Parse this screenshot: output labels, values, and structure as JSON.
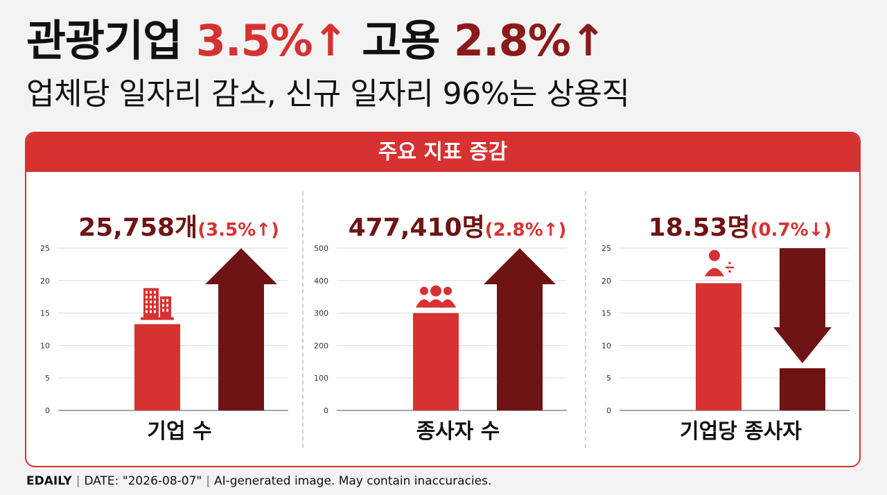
{
  "headline": {
    "part1": "관광기업 ",
    "value1": "3.5%↑",
    "part2": " 고용 ",
    "value2": "2.8%↑"
  },
  "subheadline": "업체당 일자리 감소, 신규 일자리 96%는 상용직",
  "panel_title": "주요 지표 증감",
  "colors": {
    "red": "#d63232",
    "dark_red": "#6e1414",
    "grid": "#d9d9d9"
  },
  "chart_data": [
    {
      "type": "bar",
      "value_label": "25,758개",
      "change_label": "(3.5%↑)",
      "xlabel": "기업 수",
      "ylim": [
        0,
        25
      ],
      "yticks": [
        0,
        5,
        10,
        15,
        20,
        25
      ],
      "bar_value": 13.3,
      "arrow": "up",
      "arrow_top_value": 25,
      "icon": "building-icon"
    },
    {
      "type": "bar",
      "value_label": "477,410명",
      "change_label": "(2.8%↑)",
      "xlabel": "종사자 수",
      "ylim": [
        0,
        500
      ],
      "yticks": [
        0,
        100,
        200,
        300,
        400,
        500
      ],
      "bar_value": 300,
      "arrow": "up",
      "arrow_top_value": 500,
      "icon": "people-group-icon"
    },
    {
      "type": "bar",
      "value_label": "18.53명",
      "change_label": "(0.7%↓)",
      "xlabel": "기업당 종사자",
      "ylim": [
        0,
        25
      ],
      "yticks": [
        0,
        5,
        10,
        15,
        20,
        25
      ],
      "bar_value": 19.6,
      "arrow": "down",
      "arrow_bottom_value": 6.5,
      "icon": "person-divide-icon"
    }
  ],
  "footer": {
    "brand": "EDAILY",
    "date": "DATE: \"2026-08-07\"",
    "disclaimer": "AI-generated image. May contain inaccuracies."
  }
}
